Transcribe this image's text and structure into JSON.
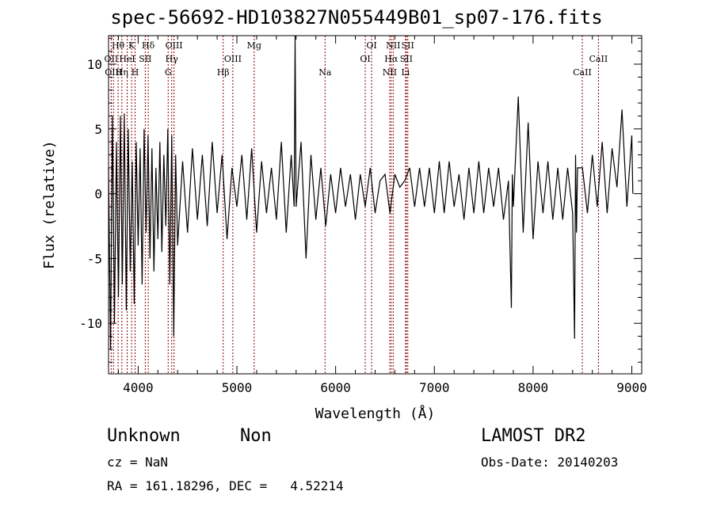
{
  "title": "spec-56692-HD103827N055449B01_sp07-176.fits",
  "info": {
    "class": "Unknown",
    "subclass": "Non",
    "survey": "LAMOST DR2",
    "cz": "cz = NaN",
    "obs_date": "Obs-Date: 20140203",
    "radec": "RA = 161.18296, DEC =   4.52214"
  },
  "chart_data": {
    "type": "line",
    "title": "spec-56692-HD103827N055449B01_sp07-176.fits",
    "xlabel": "Wavelength (Å)",
    "ylabel": "Flux (relative)",
    "xlim": [
      3700,
      9100
    ],
    "ylim": [
      -13.9,
      12.2
    ],
    "grid": false,
    "legend": "none",
    "line_color": "#000000",
    "marker_color": "#8b0000",
    "xticks": [
      4000,
      5000,
      6000,
      7000,
      8000,
      9000
    ],
    "yticks": [
      -10,
      -5,
      0,
      5,
      10
    ],
    "series": [
      {
        "x": [
          3700,
          3720,
          3740,
          3760,
          3780,
          3800,
          3820,
          3840,
          3860,
          3880,
          3900,
          3920,
          3940,
          3960,
          3980,
          4000,
          4020,
          4040,
          4060,
          4080,
          4100,
          4120,
          4140,
          4160,
          4180,
          4200,
          4220,
          4240,
          4260,
          4280,
          4300,
          4320,
          4340,
          4360,
          4380,
          4400,
          4450,
          4500,
          4550,
          4600,
          4650,
          4700,
          4750,
          4800,
          4850,
          4900,
          4950,
          5000,
          5050,
          5100,
          5150,
          5200,
          5250,
          5300,
          5350,
          5400,
          5450,
          5500,
          5550,
          5580,
          5590,
          5600,
          5650,
          5700,
          5750,
          5800,
          5850,
          5900,
          5950,
          6000,
          6050,
          6100,
          6150,
          6200,
          6250,
          6300,
          6350,
          6400,
          6450,
          6500,
          6550,
          6600,
          6650,
          6700,
          6750,
          6800,
          6850,
          6900,
          6950,
          7000,
          7050,
          7100,
          7150,
          7200,
          7250,
          7300,
          7350,
          7400,
          7450,
          7500,
          7550,
          7600,
          7650,
          7700,
          7750,
          7780,
          7790,
          7800,
          7850,
          7900,
          7950,
          8000,
          8050,
          8100,
          8150,
          8200,
          8250,
          8300,
          8350,
          8400,
          8420,
          8430,
          8440,
          8450,
          8500,
          8550,
          8600,
          8650,
          8700,
          8750,
          8800,
          8850,
          8900,
          8950,
          9000,
          9010
        ],
        "y": [
          2.0,
          -12.0,
          6.0,
          -10.0,
          4.0,
          -8.0,
          6.0,
          -7.0,
          6.2,
          -9.0,
          5.0,
          -6.0,
          2.5,
          -8.5,
          4.0,
          -4.0,
          3.5,
          -7.0,
          5.0,
          -3.0,
          4.5,
          -5.0,
          3.5,
          -6.0,
          2.0,
          -3.5,
          4.0,
          -4.5,
          3.0,
          -2.5,
          5.0,
          -7.0,
          4.5,
          -11.0,
          3.0,
          -4.0,
          2.5,
          -3.0,
          3.5,
          -2.0,
          3.0,
          -2.5,
          4.0,
          -1.5,
          3.0,
          -3.5,
          2.0,
          -1.0,
          3.0,
          -2.0,
          3.5,
          -3.0,
          2.5,
          -1.5,
          2.0,
          -2.0,
          4.0,
          -3.0,
          3.0,
          -1.0,
          13.0,
          -1.0,
          4.0,
          -5.0,
          3.0,
          -2.0,
          2.0,
          -2.5,
          1.5,
          -1.5,
          2.0,
          -1.0,
          1.5,
          -2.0,
          1.5,
          -1.0,
          2.0,
          -1.5,
          1.0,
          1.5,
          -1.5,
          1.5,
          0.5,
          1.0,
          2.0,
          -1.0,
          2.0,
          -1.0,
          2.0,
          -1.5,
          2.5,
          -1.5,
          2.5,
          -1.0,
          1.5,
          -2.0,
          2.0,
          -1.5,
          2.5,
          -1.5,
          2.0,
          -1.0,
          2.0,
          -2.0,
          1.0,
          -8.8,
          1.5,
          -1.0,
          7.5,
          -3.0,
          5.5,
          -3.5,
          2.5,
          -1.5,
          2.5,
          -2.0,
          2.0,
          -2.0,
          2.0,
          -1.5,
          -11.2,
          3.0,
          -3.0,
          2.0,
          2.0,
          -1.5,
          3.0,
          -1.0,
          4.0,
          -1.5,
          3.5,
          0.5,
          6.5,
          -1.0,
          4.5,
          0.0
        ]
      }
    ],
    "line_markers": {
      "top": [
        {
          "label": "Hθ",
          "wavelength": 3797
        },
        {
          "label": "K",
          "wavelength": 3934
        },
        {
          "label": "Hδ",
          "wavelength": 4102
        },
        {
          "label": "OIII",
          "wavelength": 4363
        },
        {
          "label": "Mg",
          "wavelength": 5175
        },
        {
          "label": "OI",
          "wavelength": 6364
        },
        {
          "label": "NII",
          "wavelength": 6583
        },
        {
          "label": "SII",
          "wavelength": 6731
        }
      ],
      "middle": [
        {
          "label": "OII",
          "wavelength": 3727
        },
        {
          "label": "HeI",
          "wavelength": 3889
        },
        {
          "label": "SII",
          "wavelength": 4072
        },
        {
          "label": "Hγ",
          "wavelength": 4340
        },
        {
          "label": "OIII",
          "wavelength": 4959
        },
        {
          "label": "OI",
          "wavelength": 6300
        },
        {
          "label": "Hα",
          "wavelength": 6563
        },
        {
          "label": "SII",
          "wavelength": 6716
        },
        {
          "label": "CaII",
          "wavelength": 8662
        }
      ],
      "bottom": [
        {
          "label": "OIII",
          "wavelength": 3750
        },
        {
          "label": "Hη",
          "wavelength": 3835
        },
        {
          "label": "H",
          "wavelength": 3969
        },
        {
          "label": "G",
          "wavelength": 4304
        },
        {
          "label": "Hβ",
          "wavelength": 4861
        },
        {
          "label": "Na",
          "wavelength": 5893
        },
        {
          "label": "NII",
          "wavelength": 6548
        },
        {
          "label": "Li",
          "wavelength": 6708
        },
        {
          "label": "CaII",
          "wavelength": 8498
        }
      ]
    }
  }
}
